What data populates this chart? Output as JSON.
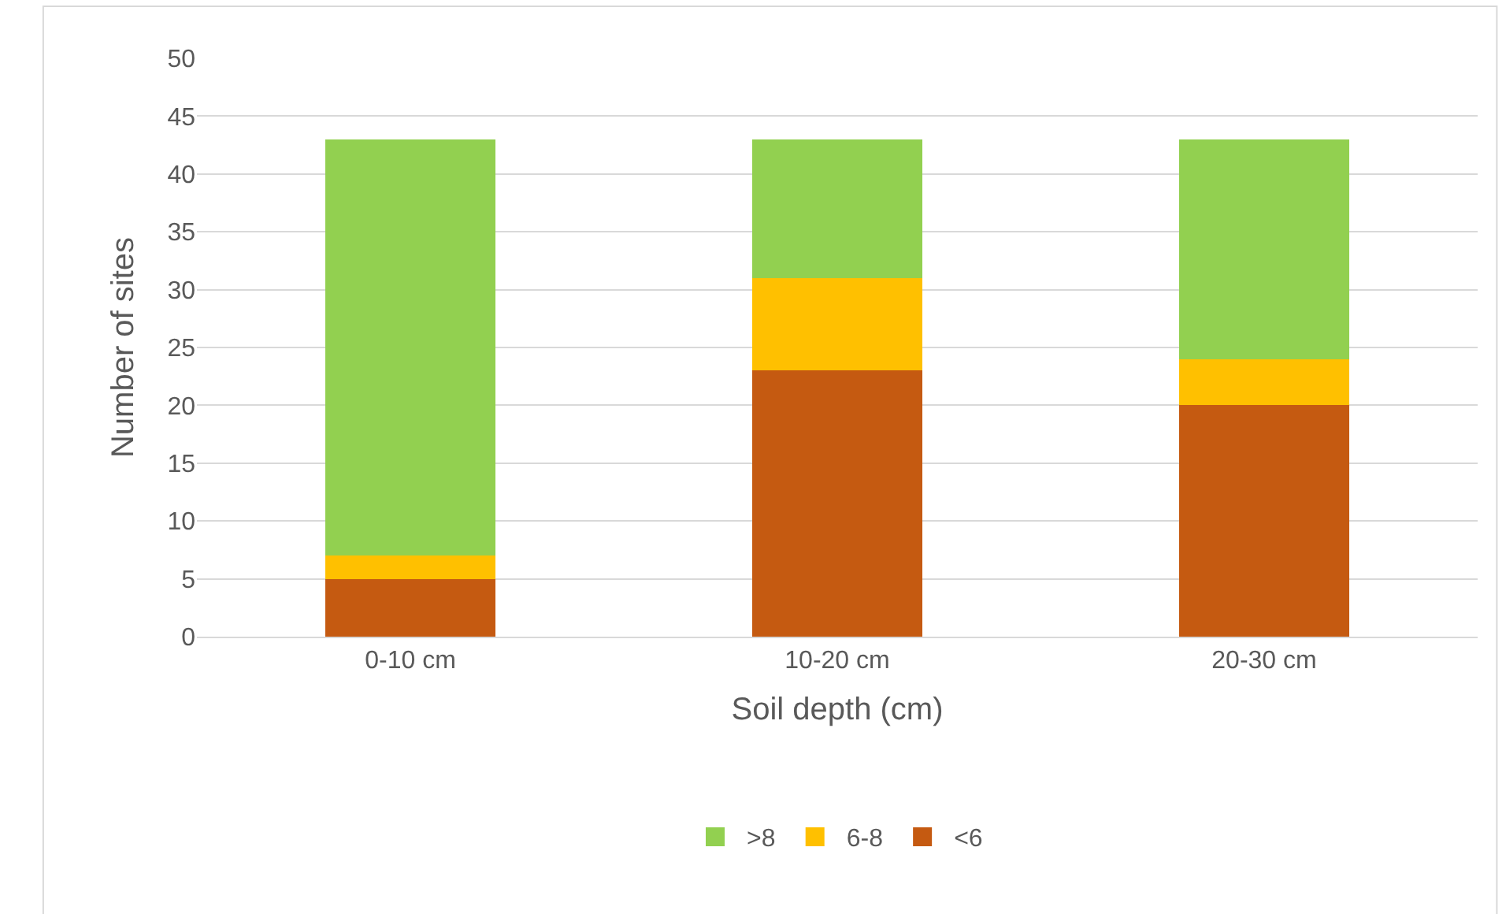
{
  "chart_data": {
    "type": "bar",
    "stacked": true,
    "xlabel": "Soil depth (cm)",
    "ylabel": "Number of sites",
    "categories": [
      "0-10 cm",
      "10-20 cm",
      "20-30 cm"
    ],
    "series": [
      {
        "name": "<6",
        "color": "#c55a11",
        "values": [
          5,
          23,
          20
        ]
      },
      {
        "name": "6-8",
        "color": "#ffc000",
        "values": [
          2,
          8,
          4
        ]
      },
      {
        "name": ">8",
        "color": "#92d050",
        "values": [
          36,
          12,
          19
        ]
      }
    ],
    "ylim": [
      0,
      50
    ],
    "yticks": [
      0,
      5,
      10,
      15,
      20,
      25,
      30,
      35,
      40,
      45,
      50
    ],
    "grid": "y",
    "legend": "bottom"
  }
}
